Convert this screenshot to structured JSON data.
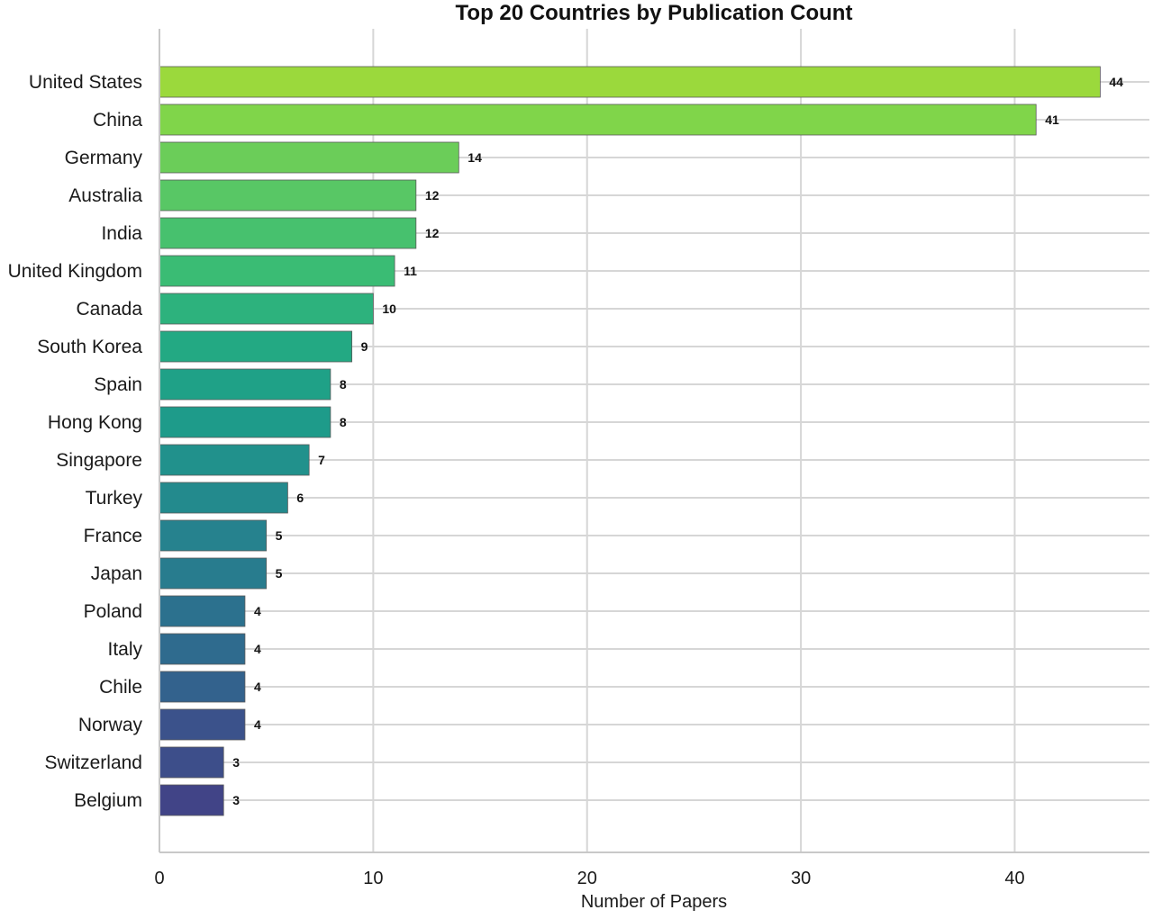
{
  "chart_data": {
    "type": "bar",
    "orientation": "horizontal",
    "title": "Top 20 Countries by Publication Count",
    "xlabel": "Number of Papers",
    "ylabel": "",
    "xlim": [
      0,
      46.3
    ],
    "xticks": [
      0,
      10,
      20,
      30,
      40
    ],
    "grid": true,
    "categories": [
      "United States",
      "China",
      "Germany",
      "Australia",
      "India",
      "United Kingdom",
      "Canada",
      "South Korea",
      "Spain",
      "Hong Kong",
      "Singapore",
      "Turkey",
      "France",
      "Japan",
      "Poland",
      "Italy",
      "Chile",
      "Norway",
      "Switzerland",
      "Belgium"
    ],
    "values": [
      44,
      41,
      14,
      12,
      12,
      11,
      10,
      9,
      8,
      8,
      7,
      6,
      5,
      5,
      4,
      4,
      4,
      4,
      3,
      3
    ],
    "colors": [
      "#9bd93c",
      "#80d54a",
      "#6bcd59",
      "#58c765",
      "#47c16e",
      "#3abc74",
      "#2db27d",
      "#23a983",
      "#1fa187",
      "#1e9b8a",
      "#21918c",
      "#238a8d",
      "#26828e",
      "#287c8e",
      "#2c718e",
      "#2f6b8e",
      "#33628d",
      "#3b528b",
      "#3d4e8a",
      "#414487"
    ],
    "show_value_labels": true
  }
}
